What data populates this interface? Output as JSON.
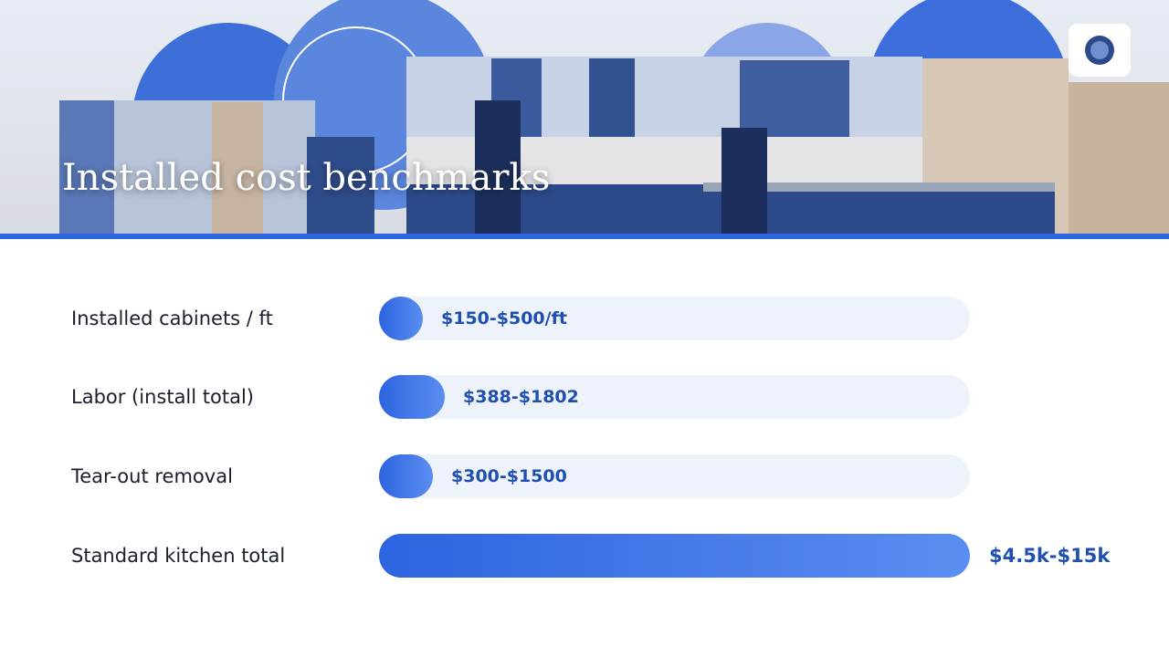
{
  "header": {
    "title": "Installed cost benchmarks"
  },
  "rows": [
    {
      "label": "Installed cabinets / ft",
      "value": "$150-$500/ft"
    },
    {
      "label": "Labor (install total)",
      "value": "$388-$1802"
    },
    {
      "label": "Tear-out removal",
      "value": "$300-$1500"
    },
    {
      "label": "Standard kitchen total",
      "value": "$4.5k-$15k"
    }
  ]
}
